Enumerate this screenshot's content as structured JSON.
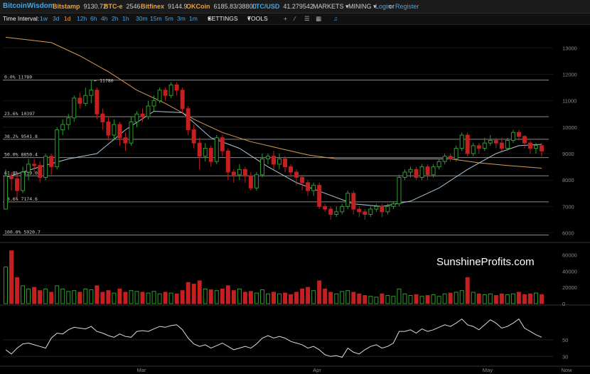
{
  "header": {
    "brand": "BitcoinWisdom",
    "tickers": [
      {
        "name": "Bitstamp",
        "value": "9130.72"
      },
      {
        "name": "BTC-e",
        "value": "2546"
      },
      {
        "name": "Bitfinex",
        "value": "9144.9"
      },
      {
        "name": "OKCoin",
        "value": "6185.83/38800"
      },
      {
        "name": "LTC/USD",
        "value": "41.279542"
      }
    ],
    "markets_label": "MARKETS",
    "mining_label": "MINING",
    "login_label": "Login",
    "or_label": "or",
    "register_label": "Register"
  },
  "toolbar": {
    "time_interval_label": "Time Interval:",
    "intervals": [
      "1w",
      "3d",
      "1d",
      "12h",
      "6h",
      "4h",
      "2h",
      "1h",
      "30m",
      "15m",
      "5m",
      "3m",
      "1m"
    ],
    "active_interval": "1d",
    "settings_label": "SETTINGS",
    "tools_label": "TOOLS",
    "tool_icons": [
      "plus-icon",
      "line-icon",
      "menu-icon",
      "grid-icon",
      "alarm-icon"
    ]
  },
  "watermark": "SunshineProfits.com",
  "colors": {
    "up": "#2e9e2e",
    "down": "#c42020",
    "ma_fast": "#aec6d8",
    "ma_slow": "#d99a52",
    "fib_line": "#8a8a8a",
    "link": "#4aa3df",
    "ticker_name": "#f0a030"
  },
  "chart_data": {
    "type": "candlestick",
    "x_labels": [
      "Mar",
      "Apr",
      "May",
      "Now"
    ],
    "price_axis": {
      "ticks": [
        6000,
        7000,
        8000,
        9000,
        10000,
        11000,
        12000,
        13000
      ],
      "range": [
        5800,
        13600
      ]
    },
    "high_annotation": "11780",
    "fib_levels": [
      {
        "label": "0.0% 11780",
        "price": 11780
      },
      {
        "label": "23.6% 10397",
        "price": 10397
      },
      {
        "label": "38.2% 9541.8",
        "price": 9541.8
      },
      {
        "label": "50.0% 8850.4",
        "price": 8850.4
      },
      {
        "label": "61.8% 8159.0",
        "price": 8159.0
      },
      {
        "label": "78.6% 7174.6",
        "price": 7174.6
      },
      {
        "label": "100.0% 5920.7",
        "price": 5920.7
      }
    ],
    "candles": [
      [
        6900,
        8150,
        6900,
        8400
      ],
      [
        8150,
        8050,
        7600,
        8300
      ],
      [
        8050,
        7600,
        7300,
        8250
      ],
      [
        7600,
        8300,
        7500,
        8500
      ],
      [
        8300,
        8600,
        8000,
        8800
      ],
      [
        8600,
        8550,
        8300,
        8800
      ],
      [
        8550,
        8100,
        7900,
        8700
      ],
      [
        8100,
        8900,
        8000,
        9000
      ],
      [
        8900,
        8500,
        8200,
        9000
      ],
      [
        8500,
        9900,
        8400,
        10000
      ],
      [
        9900,
        10100,
        9700,
        10300
      ],
      [
        10100,
        10350,
        9900,
        10500
      ],
      [
        10350,
        11100,
        10200,
        11200
      ],
      [
        11100,
        10900,
        10700,
        11300
      ],
      [
        10900,
        11200,
        10800,
        11500
      ],
      [
        11200,
        11400,
        10900,
        11780
      ],
      [
        11400,
        10500,
        10300,
        11500
      ],
      [
        10500,
        10200,
        9900,
        10700
      ],
      [
        10200,
        9700,
        9500,
        10400
      ],
      [
        9700,
        10100,
        9500,
        10300
      ],
      [
        10100,
        9600,
        9300,
        10200
      ],
      [
        9600,
        9400,
        9100,
        9800
      ],
      [
        9400,
        10200,
        9300,
        10400
      ],
      [
        10200,
        10500,
        10000,
        10600
      ],
      [
        10500,
        10400,
        10200,
        10700
      ],
      [
        10400,
        10800,
        10300,
        11000
      ],
      [
        10800,
        11000,
        10600,
        11200
      ],
      [
        11000,
        11400,
        10900,
        11500
      ],
      [
        11400,
        11200,
        11000,
        11500
      ],
      [
        11200,
        11600,
        11100,
        11700
      ],
      [
        11600,
        11400,
        11200,
        11700
      ],
      [
        11400,
        10700,
        10500,
        11500
      ],
      [
        10700,
        9900,
        9700,
        10800
      ],
      [
        9900,
        9400,
        9200,
        10100
      ],
      [
        9400,
        8900,
        8400,
        9600
      ],
      [
        8900,
        9200,
        8700,
        9400
      ],
      [
        9200,
        8700,
        8500,
        9300
      ],
      [
        8700,
        9600,
        8600,
        9700
      ],
      [
        9600,
        9100,
        8900,
        9700
      ],
      [
        9100,
        8300,
        8000,
        9200
      ],
      [
        8300,
        8200,
        7900,
        8400
      ],
      [
        8200,
        8400,
        8000,
        8600
      ],
      [
        8400,
        8150,
        7900,
        8500
      ],
      [
        8150,
        7700,
        7600,
        8300
      ],
      [
        7700,
        8200,
        7600,
        8300
      ],
      [
        8200,
        8800,
        8100,
        9000
      ],
      [
        8800,
        8900,
        8600,
        9000
      ],
      [
        8900,
        8600,
        8400,
        9100
      ],
      [
        8600,
        8800,
        8400,
        9000
      ],
      [
        8800,
        8500,
        8300,
        8900
      ],
      [
        8500,
        8300,
        8100,
        8600
      ],
      [
        8300,
        8100,
        7800,
        8400
      ],
      [
        8100,
        7900,
        7600,
        8200
      ],
      [
        7900,
        7600,
        7400,
        8000
      ],
      [
        7600,
        7800,
        7400,
        7900
      ],
      [
        7800,
        7000,
        6900,
        7900
      ],
      [
        7000,
        6900,
        6800,
        7100
      ],
      [
        6900,
        6700,
        6500,
        7000
      ],
      [
        6700,
        6800,
        6600,
        7000
      ],
      [
        6800,
        7000,
        6700,
        7100
      ],
      [
        7000,
        7500,
        6900,
        7600
      ],
      [
        7500,
        6900,
        6700,
        7600
      ],
      [
        6900,
        6800,
        6600,
        7000
      ],
      [
        6800,
        6700,
        6500,
        6900
      ],
      [
        6700,
        6900,
        6600,
        7000
      ],
      [
        6900,
        7000,
        6800,
        7100
      ],
      [
        7000,
        6800,
        6600,
        7100
      ],
      [
        6800,
        7000,
        6700,
        7100
      ],
      [
        7000,
        7100,
        6900,
        7200
      ],
      [
        7100,
        8100,
        7000,
        8200
      ],
      [
        8100,
        8300,
        8000,
        8400
      ],
      [
        8300,
        8400,
        8100,
        8500
      ],
      [
        8400,
        8100,
        8000,
        8500
      ],
      [
        8100,
        8500,
        8000,
        8600
      ],
      [
        8500,
        8200,
        8000,
        8600
      ],
      [
        8200,
        8500,
        8100,
        8600
      ],
      [
        8500,
        8700,
        8400,
        8800
      ],
      [
        8700,
        8900,
        8600,
        9000
      ],
      [
        8900,
        8800,
        8700,
        9000
      ],
      [
        8800,
        9200,
        8700,
        9300
      ],
      [
        9200,
        9700,
        9100,
        9800
      ],
      [
        9700,
        9000,
        8900,
        9800
      ],
      [
        9000,
        9300,
        8900,
        9400
      ],
      [
        9300,
        9200,
        9000,
        9400
      ],
      [
        9200,
        9400,
        9100,
        9600
      ],
      [
        9400,
        9500,
        9300,
        9700
      ],
      [
        9500,
        9400,
        9200,
        9600
      ],
      [
        9400,
        9200,
        9100,
        9600
      ],
      [
        9200,
        9500,
        9100,
        9600
      ],
      [
        9500,
        9800,
        9400,
        9900
      ],
      [
        9800,
        9650,
        9500,
        9900
      ],
      [
        9650,
        9400,
        9200,
        9700
      ],
      [
        9400,
        9200,
        9000,
        9500
      ],
      [
        9200,
        9300,
        9000,
        9400
      ],
      [
        9300,
        9100,
        8900,
        9400
      ]
    ],
    "volume_axis": {
      "ticks": [
        0,
        20000,
        40000,
        60000
      ],
      "range": [
        0,
        70000
      ]
    },
    "volumes": [
      45000,
      65000,
      32000,
      22000,
      18000,
      20000,
      16000,
      18000,
      14000,
      22000,
      18000,
      15000,
      16000,
      14000,
      18000,
      17000,
      22000,
      14000,
      16000,
      13000,
      18000,
      14000,
      16000,
      15000,
      14000,
      13000,
      15000,
      12000,
      14000,
      13000,
      12000,
      16000,
      26000,
      24000,
      28000,
      18000,
      17000,
      16000,
      18000,
      22000,
      16000,
      18000,
      14000,
      15000,
      13000,
      17000,
      12000,
      14000,
      12000,
      13000,
      11000,
      14000,
      18000,
      20000,
      16000,
      28000,
      18000,
      14000,
      12000,
      15000,
      16000,
      14000,
      12000,
      10000,
      9000,
      8000,
      12000,
      10000,
      9000,
      18000,
      12000,
      10000,
      11000,
      9000,
      10000,
      11000,
      9000,
      12000,
      13000,
      14000,
      16000,
      32000,
      14000,
      12000,
      11000,
      12000,
      10000,
      12000,
      11000,
      12000,
      14000,
      11000,
      12000,
      13000,
      11000
    ],
    "oscillator_axis": {
      "ticks": [
        30,
        50
      ],
      "range": [
        20,
        90
      ]
    },
    "oscillator": [
      38,
      33,
      40,
      45,
      46,
      44,
      42,
      40,
      52,
      58,
      57,
      62,
      65,
      64,
      63,
      66,
      60,
      58,
      55,
      53,
      57,
      54,
      53,
      60,
      61,
      60,
      63,
      66,
      65,
      67,
      68,
      62,
      52,
      45,
      42,
      44,
      40,
      43,
      46,
      42,
      38,
      40,
      42,
      40,
      45,
      52,
      55,
      52,
      54,
      52,
      48,
      46,
      44,
      40,
      42,
      38,
      32,
      30,
      31,
      29,
      40,
      35,
      33,
      38,
      42,
      44,
      40,
      42,
      46,
      60,
      60,
      62,
      58,
      63,
      60,
      62,
      65,
      68,
      66,
      70,
      75,
      68,
      66,
      62,
      68,
      74,
      70,
      64,
      66,
      70,
      75,
      64,
      60,
      56,
      53
    ],
    "fast_ma": [
      [
        0,
        8100
      ],
      [
        6,
        8500
      ],
      [
        11,
        8800
      ],
      [
        16,
        9000
      ],
      [
        21,
        9900
      ],
      [
        26,
        10600
      ],
      [
        31,
        10550
      ],
      [
        36,
        9600
      ],
      [
        41,
        9200
      ],
      [
        46,
        8500
      ],
      [
        51,
        7900
      ],
      [
        56,
        7500
      ],
      [
        61,
        7100
      ],
      [
        66,
        7000
      ],
      [
        71,
        7200
      ],
      [
        76,
        7700
      ],
      [
        81,
        8400
      ],
      [
        86,
        9000
      ],
      [
        90,
        9300
      ],
      [
        94,
        9350
      ]
    ],
    "slow_ma": [
      [
        0,
        13400
      ],
      [
        8,
        13200
      ],
      [
        13,
        12700
      ],
      [
        18,
        12100
      ],
      [
        23,
        11400
      ],
      [
        28,
        10900
      ],
      [
        33,
        10300
      ],
      [
        38,
        9800
      ],
      [
        43,
        9450
      ],
      [
        48,
        9200
      ],
      [
        53,
        8950
      ],
      [
        58,
        8800
      ],
      [
        63,
        8800
      ],
      [
        68,
        8800
      ],
      [
        73,
        8800
      ],
      [
        78,
        8800
      ],
      [
        83,
        8650
      ],
      [
        88,
        8550
      ],
      [
        94,
        8450
      ]
    ]
  }
}
